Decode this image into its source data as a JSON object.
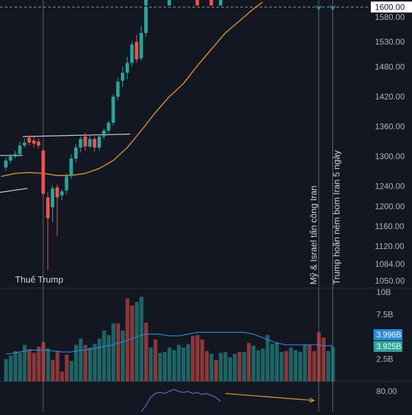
{
  "chart_data": [
    {
      "type": "candlestick",
      "pane": "price",
      "title": "",
      "ylim": [
        1040,
        1610
      ],
      "yticks": [
        1580,
        1530,
        1480,
        1420,
        1360,
        1300,
        1240,
        1200,
        1160,
        1120,
        1084,
        1050
      ],
      "ytick_labels": [
        "1580.00",
        "1530.00",
        "1480.00",
        "1420.00",
        "1360.00",
        "1300.00",
        "1240.00",
        "1200.00",
        "1160.00",
        "1120.00",
        "1084.00",
        "1050.00"
      ],
      "current_price_label": "1600.00",
      "current_price": 1600,
      "candles": [
        [
          1278,
          1292,
          1272,
          1298
        ],
        [
          1292,
          1300,
          1286,
          1305
        ],
        [
          1300,
          1305,
          1296,
          1312
        ],
        [
          1305,
          1322,
          1302,
          1330
        ],
        [
          1322,
          1328,
          1318,
          1336
        ],
        [
          1338,
          1328,
          1322,
          1342
        ],
        [
          1332,
          1326,
          1318,
          1340
        ],
        [
          1330,
          1322,
          1316,
          1336
        ],
        [
          1312,
          1225,
          1218,
          1316
        ],
        [
          1218,
          1176,
          1072,
          1228
        ],
        [
          1198,
          1236,
          1168,
          1242
        ],
        [
          1238,
          1218,
          1140,
          1244
        ],
        [
          1222,
          1230,
          1212,
          1234
        ],
        [
          1232,
          1260,
          1224,
          1266
        ],
        [
          1262,
          1296,
          1255,
          1305
        ],
        [
          1296,
          1318,
          1288,
          1325
        ],
        [
          1318,
          1335,
          1308,
          1340
        ],
        [
          1340,
          1320,
          1312,
          1348
        ],
        [
          1320,
          1335,
          1316,
          1342
        ],
        [
          1335,
          1318,
          1310,
          1340
        ],
        [
          1318,
          1340,
          1312,
          1345
        ],
        [
          1340,
          1352,
          1334,
          1356
        ],
        [
          1352,
          1368,
          1346,
          1372
        ],
        [
          1368,
          1420,
          1362,
          1425
        ],
        [
          1420,
          1450,
          1412,
          1458
        ],
        [
          1452,
          1468,
          1440,
          1480
        ],
        [
          1468,
          1488,
          1455,
          1500
        ],
        [
          1488,
          1525,
          1480,
          1532
        ],
        [
          1530,
          1495,
          1488,
          1545
        ],
        [
          1497,
          1548,
          1492,
          1562
        ],
        [
          1548,
          1600,
          1540,
          1608
        ]
      ],
      "top_marks": [
        {
          "after_index": 30,
          "color": "#26a69a"
        },
        {
          "after_index": 35,
          "color": "#26a69a"
        },
        {
          "after_index": 41,
          "color": "#ef5350"
        },
        {
          "after_index": 44,
          "color": "#ef5350"
        },
        {
          "after_index": 46,
          "color": "#26a69a"
        }
      ],
      "ma_line": {
        "color": "#e3962b",
        "points": [
          [
            -1,
            1260
          ],
          [
            2,
            1266
          ],
          [
            5,
            1268
          ],
          [
            8,
            1266
          ],
          [
            11,
            1262
          ],
          [
            14,
            1262
          ],
          [
            17,
            1266
          ],
          [
            20,
            1276
          ],
          [
            23,
            1292
          ],
          [
            26,
            1318
          ],
          [
            29,
            1352
          ],
          [
            32,
            1388
          ],
          [
            35,
            1420
          ],
          [
            38,
            1446
          ],
          [
            41,
            1482
          ],
          [
            44,
            1515
          ],
          [
            47,
            1548
          ],
          [
            50,
            1572
          ],
          [
            53,
            1596
          ],
          [
            55,
            1610
          ]
        ]
      },
      "trend_lines": [
        {
          "from": [
            -1,
            1302
          ],
          "to": [
            4,
            1302
          ]
        },
        {
          "from": [
            4,
            1340
          ],
          "to": [
            27,
            1345
          ]
        },
        {
          "from": [
            -1,
            1228
          ],
          "to": [
            5,
            1236
          ]
        }
      ],
      "events": [
        {
          "index": 8,
          "label": "Thuế Trump"
        },
        {
          "index": 67,
          "label": "Mỹ & Israel tấn công Iran"
        },
        {
          "index": 70,
          "label": "Trump hoãn ném bom Iran 5 ngày"
        }
      ]
    },
    {
      "type": "bar",
      "pane": "volume",
      "ylim": [
        0,
        10
      ],
      "yticks": [
        10,
        7.5,
        2.5
      ],
      "ytick_labels": [
        "10B",
        "7.5B",
        "2.5B"
      ],
      "values": [
        2.5,
        2.9,
        3.4,
        3.2,
        4.1,
        3.6,
        3.2,
        3.9,
        4.4,
        3.7,
        2.4,
        3.4,
        1.1,
        3.0,
        2.3,
        4.1,
        4.8,
        4.1,
        3.8,
        4.2,
        4.8,
        5.7,
        5.2,
        6.5,
        6.5,
        5.7,
        9.3,
        8.5,
        8.9,
        9.5,
        6.6,
        3.8,
        4.7,
        3.2,
        3.3,
        3.8,
        3.5,
        4.1,
        3.8,
        4.2,
        5.1,
        5.2,
        4.7,
        3.4,
        3.1,
        2.4,
        3.2,
        3.3,
        2.7,
        3.1,
        3.3,
        3.3,
        4.3,
        4.0,
        3.5,
        3.7,
        5.2,
        4.2,
        4.4,
        3.3,
        3.4,
        3.8,
        3.5,
        3.3,
        4.1,
        4.1,
        3.4,
        5.5,
        4.9,
        3.4,
        3.9
      ],
      "up": [
        1,
        1,
        1,
        1,
        1,
        0,
        0,
        0,
        0,
        1,
        0,
        0,
        0,
        0,
        1,
        1,
        1,
        0,
        1,
        1,
        1,
        1,
        1,
        1,
        0,
        1,
        0,
        0,
        1,
        1,
        0,
        1,
        0,
        1,
        1,
        1,
        1,
        1,
        1,
        1,
        0,
        0,
        0,
        0,
        1,
        0,
        1,
        1,
        1,
        1,
        0,
        1,
        0,
        1,
        1,
        1,
        1,
        1,
        1,
        1,
        0,
        1,
        1,
        1,
        1,
        0,
        0,
        0,
        0,
        1,
        1
      ],
      "ma": [
        3.1,
        3.1,
        3.2,
        3.3,
        3.4,
        3.5,
        3.5,
        3.5,
        3.5,
        3.5,
        3.4,
        3.4,
        3.3,
        3.3,
        3.3,
        3.4,
        3.5,
        3.5,
        3.6,
        3.7,
        3.8,
        3.9,
        4.0,
        4.1,
        4.3,
        4.4,
        4.6,
        4.8,
        5.0,
        5.2,
        5.3,
        5.3,
        5.3,
        5.3,
        5.2,
        5.1,
        5.1,
        5.1,
        5.2,
        5.3,
        5.4,
        5.5,
        5.5,
        5.5,
        5.5,
        5.5,
        5.5,
        5.5,
        5.5,
        5.5,
        5.5,
        5.5,
        5.4,
        5.3,
        5.1,
        4.9,
        4.7,
        4.5,
        4.3,
        4.2,
        4.1,
        4.1,
        4.1,
        4.1,
        4.1,
        4.1,
        4.1,
        4.1,
        4.0,
        4.0,
        4.0
      ],
      "ma_color": "#2a8ae0",
      "label_badges": [
        {
          "text": "3.996B",
          "value": 3.996,
          "color": "#2a8ae0"
        },
        {
          "text": "3.925B",
          "value": 3.925,
          "color": "#26a69a"
        }
      ]
    },
    {
      "type": "line",
      "pane": "oscillator",
      "ylim": [
        60,
        90
      ],
      "yticks": [
        80
      ],
      "ytick_labels": [
        "80.00"
      ],
      "series": [
        {
          "color": "#7e57c2",
          "points": [
            [
              29,
              60
            ],
            [
              30,
              66
            ],
            [
              31,
              74
            ],
            [
              32,
              78
            ],
            [
              33,
              79
            ],
            [
              34,
              78
            ],
            [
              35,
              80
            ],
            [
              36,
              82
            ],
            [
              37,
              80
            ],
            [
              38,
              79
            ],
            [
              39,
              80
            ],
            [
              40,
              78
            ],
            [
              41,
              79
            ],
            [
              42,
              77
            ],
            [
              43,
              78
            ],
            [
              44,
              76
            ],
            [
              45,
              74
            ],
            [
              46,
              70
            ]
          ]
        }
      ],
      "arrow": {
        "from": [
          47,
          78
        ],
        "to": [
          66,
          71
        ],
        "color": "#e3962b"
      }
    }
  ]
}
